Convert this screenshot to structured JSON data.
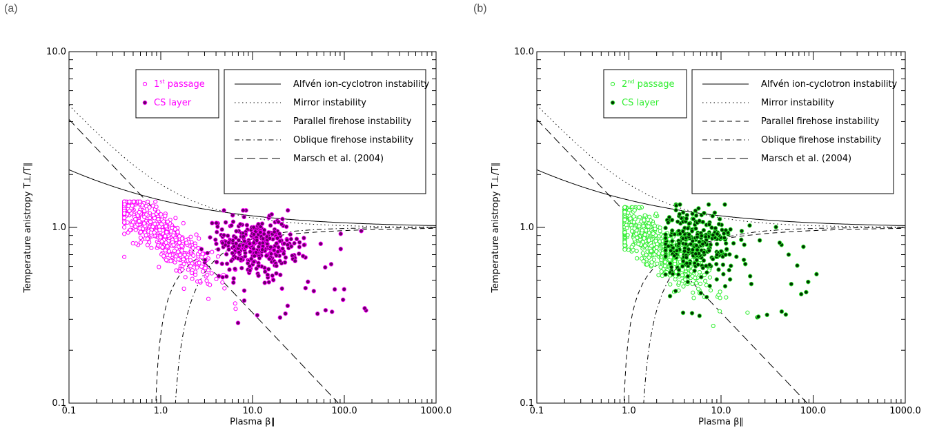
{
  "chart_data": [
    {
      "type": "scatter",
      "panel_label": "(a)",
      "xlabel": "Plasma β∥",
      "ylabel": "Temperature anistropy T⊥/T∥",
      "xscale": "log",
      "yscale": "log",
      "xlim": [
        0.1,
        1000.0
      ],
      "ylim": [
        0.1,
        10.0
      ],
      "x_tick_labels": [
        "0.1",
        "1.0",
        "10.0",
        "100.0",
        "1000.0"
      ],
      "y_tick_labels": [
        "0.1",
        "1.0",
        "10.0"
      ],
      "grid": false,
      "legend_points": [
        {
          "text": "1st passage",
          "base": "1",
          "sup": "st",
          "tail": " passage"
        },
        {
          "text": "CS layer",
          "base": "CS layer",
          "sup": "",
          "tail": ""
        }
      ],
      "legend_lines_position": "top-right",
      "points_color": "#ff00ff",
      "cs_fill": "#660066",
      "passage_cloud": {
        "x_range": [
          0.4,
          25
        ],
        "y_range": [
          0.18,
          1.4
        ],
        "count": 520
      },
      "cs_cloud": {
        "x_range": [
          2.3,
          400
        ],
        "y_range": [
          0.25,
          1.25
        ],
        "count": 360,
        "center": [
          10.5,
          0.78
        ]
      }
    },
    {
      "type": "scatter",
      "panel_label": "(b)",
      "xlabel": "Plasma β∥",
      "ylabel": "Temperature anistropy T⊥/T∥",
      "xscale": "log",
      "yscale": "log",
      "xlim": [
        0.1,
        1000.0
      ],
      "ylim": [
        0.1,
        10.0
      ],
      "x_tick_labels": [
        "0.1",
        "1.0",
        "10.0",
        "100.0",
        "1000.0"
      ],
      "y_tick_labels": [
        "0.1",
        "1.0",
        "10.0"
      ],
      "grid": false,
      "legend_points": [
        {
          "text": "2nd passage",
          "base": "2",
          "sup": "nd",
          "tail": " passage"
        },
        {
          "text": "CS layer",
          "base": "CS layer",
          "sup": "",
          "tail": ""
        }
      ],
      "legend_lines_position": "top-right",
      "points_color": "#33ee33",
      "cs_fill": "#003300",
      "passage_cloud": {
        "x_range": [
          0.9,
          30
        ],
        "y_range": [
          0.115,
          1.3
        ],
        "count": 620
      },
      "cs_cloud": {
        "x_range": [
          2.5,
          200
        ],
        "y_range": [
          0.2,
          1.35
        ],
        "count": 330,
        "center": [
          5.5,
          0.8
        ]
      }
    }
  ],
  "threshold_curves": [
    {
      "name": "Alfvén ion-cyclotron instability",
      "style": "solid",
      "a": 0.43,
      "b": 0.42,
      "beta0": -0.0004
    },
    {
      "name": "Mirror instability",
      "style": "dotted",
      "a": 0.77,
      "b": 0.76,
      "beta0": -0.016
    },
    {
      "name": "Parallel firehose instability",
      "style": "dashed",
      "a": -0.47,
      "b": 0.53,
      "beta0": 0.59
    },
    {
      "name": "Oblique firehose instability",
      "style": "dashdot",
      "a": -1.4,
      "b": 1.0,
      "beta0": -0.11
    },
    {
      "name": "Marsch et al. (2004)",
      "style": "longdash",
      "a": 1.16,
      "b": -0.55,
      "beta0": 0
    }
  ]
}
